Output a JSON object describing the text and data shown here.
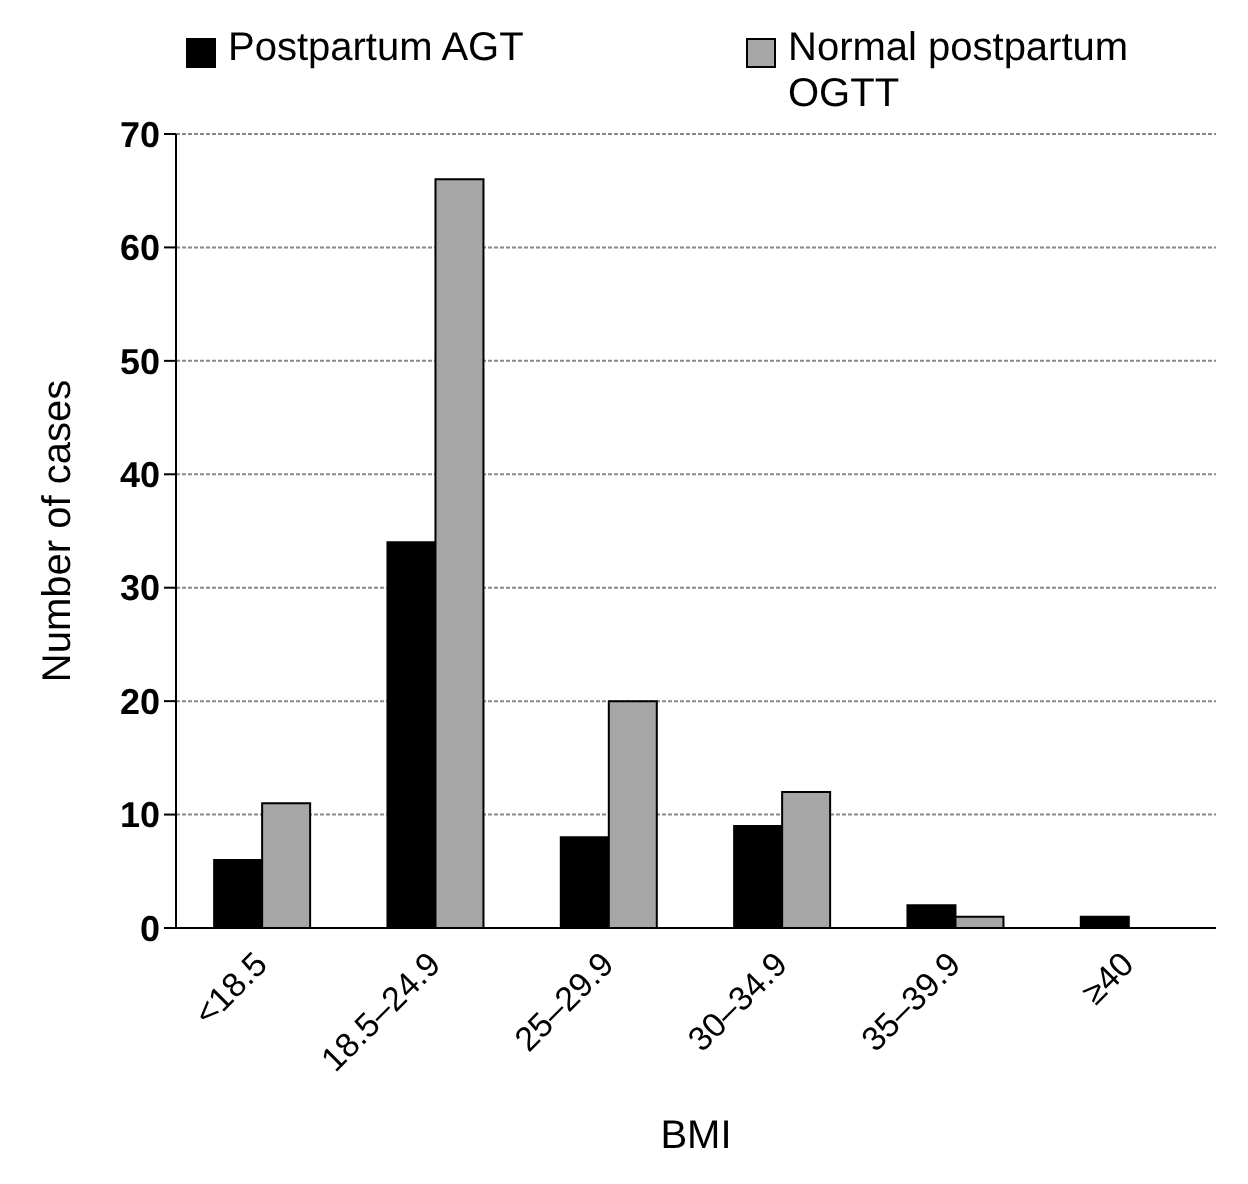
{
  "chart_data": {
    "type": "bar",
    "xlabel": "BMI",
    "ylabel": "Number of cases",
    "categories": [
      "<18.5",
      "18.5–24.9",
      "25–29.9",
      "30–34.9",
      "35–39.9",
      "≥40"
    ],
    "series": [
      {
        "name": "Postpartum AGT",
        "color": "#000000",
        "values": [
          6,
          34,
          8,
          9,
          2,
          1
        ]
      },
      {
        "name": "Normal postpartum OGTT",
        "color": "#a6a6a6",
        "values": [
          11,
          66,
          20,
          12,
          1,
          0
        ]
      }
    ],
    "ylim": [
      0,
      70
    ],
    "yticks": [
      0,
      10,
      20,
      30,
      40,
      50,
      60,
      70
    ],
    "grid": "y",
    "legend": "top"
  }
}
